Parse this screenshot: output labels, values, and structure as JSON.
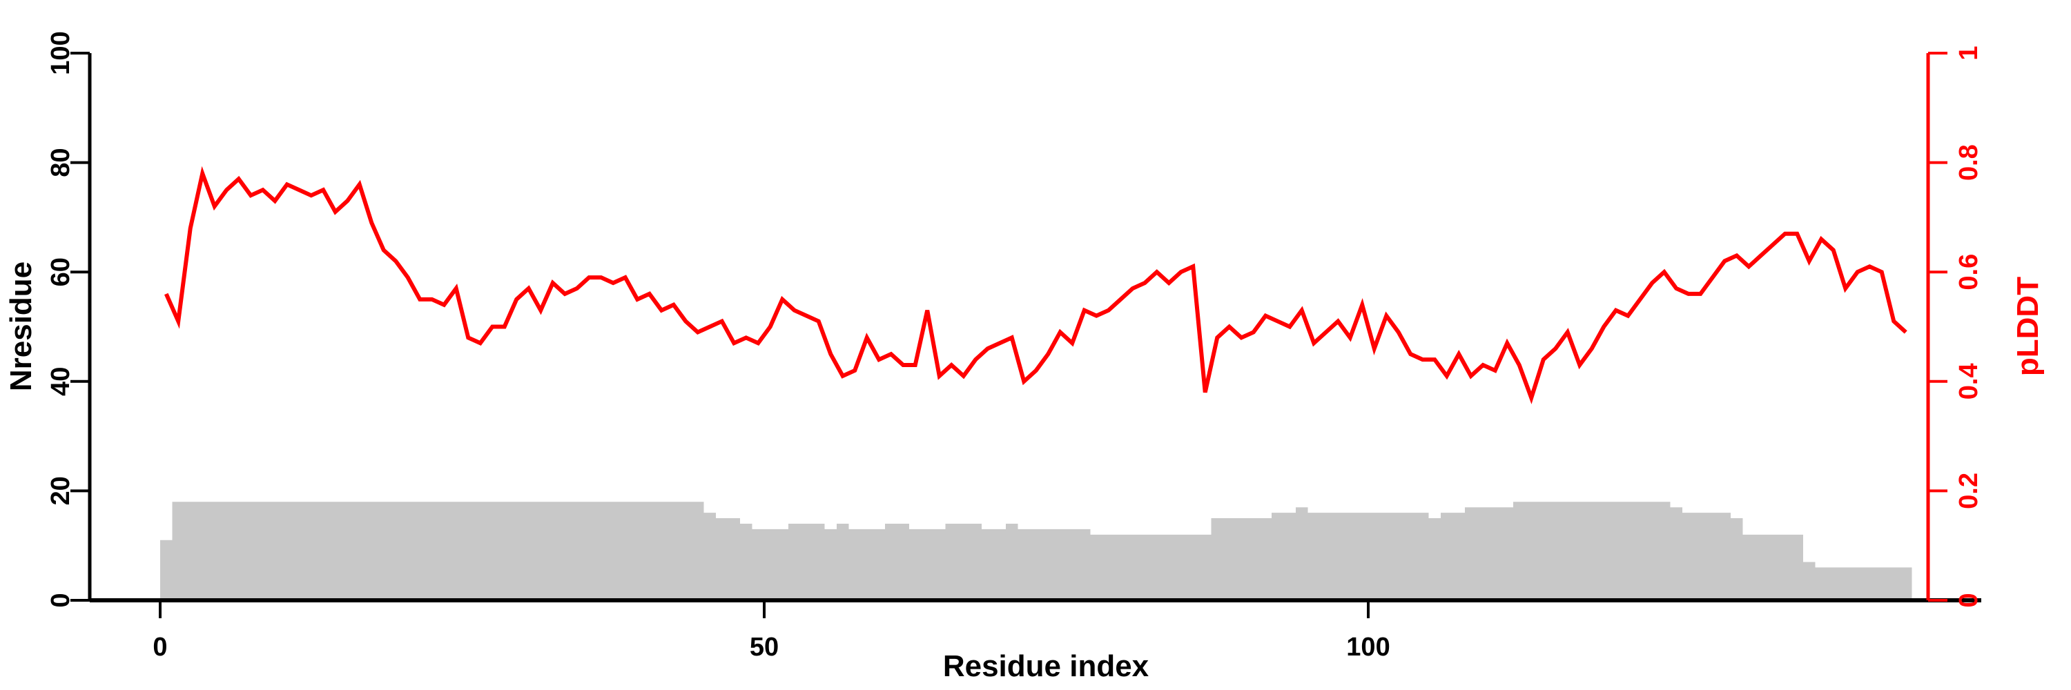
{
  "figure": {
    "background": "#ffffff"
  },
  "chart_data": {
    "type": "line+bar dual-axis profile",
    "title": "",
    "x_axis": {
      "label": "Residue index",
      "ticks": [
        0,
        50,
        100
      ],
      "range": [
        0,
        146
      ]
    },
    "left_axis": {
      "label": "Nresidue",
      "ticks": [
        0,
        20,
        40,
        60,
        80,
        100
      ],
      "range": [
        0,
        100
      ],
      "color": "#000000"
    },
    "right_axis": {
      "label": "pLDDT",
      "ticks": [
        0,
        0.2,
        0.4,
        0.6,
        0.8,
        1
      ],
      "range": [
        0,
        1
      ],
      "color": "#ff0000"
    },
    "grid": false,
    "legend": "none",
    "x": {
      "start_residue": 1,
      "count": 145
    },
    "series": [
      {
        "name": "Nresidue",
        "type": "bar",
        "axis": "left",
        "color": "#c8c8c8",
        "values": [
          11,
          18,
          18,
          18,
          18,
          18,
          18,
          18,
          18,
          18,
          18,
          18,
          18,
          18,
          18,
          18,
          18,
          18,
          18,
          18,
          18,
          18,
          18,
          18,
          18,
          18,
          18,
          18,
          18,
          18,
          18,
          18,
          18,
          18,
          18,
          18,
          18,
          18,
          18,
          18,
          18,
          18,
          18,
          18,
          18,
          16,
          15,
          15,
          14,
          13,
          13,
          13,
          14,
          14,
          14,
          13,
          14,
          13,
          13,
          13,
          14,
          14,
          13,
          13,
          13,
          14,
          14,
          14,
          13,
          13,
          14,
          13,
          13,
          13,
          13,
          13,
          13,
          12,
          12,
          12,
          12,
          12,
          12,
          12,
          12,
          12,
          12,
          15,
          15,
          15,
          15,
          15,
          16,
          16,
          17,
          16,
          16,
          16,
          16,
          16,
          16,
          16,
          16,
          16,
          16,
          15,
          16,
          16,
          17,
          17,
          17,
          17,
          18,
          18,
          18,
          18,
          18,
          18,
          18,
          18,
          18,
          18,
          18,
          18,
          18,
          17,
          16,
          16,
          16,
          16,
          15,
          12,
          12,
          12,
          12,
          12,
          7,
          6,
          6,
          6,
          6,
          6,
          6,
          6,
          6
        ]
      },
      {
        "name": "pLDDT",
        "type": "line",
        "axis": "right",
        "color": "#ff0000",
        "values": [
          0.56,
          0.51,
          0.68,
          0.78,
          0.72,
          0.75,
          0.77,
          0.74,
          0.75,
          0.73,
          0.76,
          0.75,
          0.74,
          0.75,
          0.71,
          0.73,
          0.76,
          0.69,
          0.64,
          0.62,
          0.59,
          0.55,
          0.55,
          0.54,
          0.57,
          0.48,
          0.47,
          0.5,
          0.5,
          0.55,
          0.57,
          0.53,
          0.58,
          0.56,
          0.57,
          0.59,
          0.59,
          0.58,
          0.59,
          0.55,
          0.56,
          0.53,
          0.54,
          0.51,
          0.49,
          0.5,
          0.51,
          0.47,
          0.48,
          0.47,
          0.5,
          0.55,
          0.53,
          0.52,
          0.51,
          0.45,
          0.41,
          0.42,
          0.48,
          0.44,
          0.45,
          0.43,
          0.43,
          0.53,
          0.41,
          0.43,
          0.41,
          0.44,
          0.46,
          0.47,
          0.48,
          0.4,
          0.42,
          0.45,
          0.49,
          0.47,
          0.53,
          0.52,
          0.53,
          0.55,
          0.57,
          0.58,
          0.6,
          0.58,
          0.6,
          0.61,
          0.38,
          0.48,
          0.5,
          0.48,
          0.49,
          0.52,
          0.51,
          0.5,
          0.53,
          0.47,
          0.49,
          0.51,
          0.48,
          0.54,
          0.46,
          0.52,
          0.49,
          0.45,
          0.44,
          0.44,
          0.41,
          0.45,
          0.41,
          0.43,
          0.42,
          0.47,
          0.43,
          0.37,
          0.44,
          0.46,
          0.49,
          0.43,
          0.46,
          0.5,
          0.53,
          0.52,
          0.55,
          0.58,
          0.6,
          0.57,
          0.56,
          0.56,
          0.59,
          0.62,
          0.63,
          0.61,
          0.63,
          0.65,
          0.67,
          0.67,
          0.62,
          0.66,
          0.64,
          0.57,
          0.6,
          0.61,
          0.6,
          0.51,
          0.49
        ]
      }
    ]
  }
}
